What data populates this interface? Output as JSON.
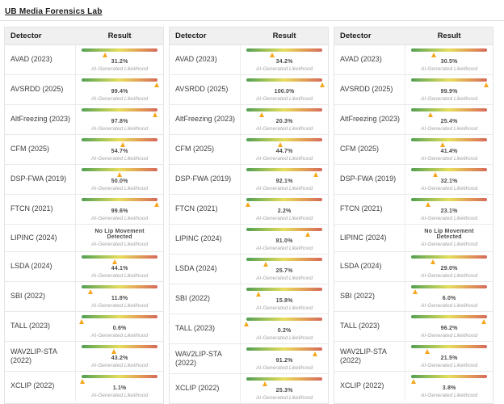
{
  "page": {
    "title": "UB Media Forensics Lab",
    "likelihood_label": "AI-Generated Likelihood",
    "colors": {
      "marker": "#f7a71e",
      "gradient": [
        "#519e52",
        "#9cc158",
        "#e7dd5e",
        "#e2a156",
        "#d5695a"
      ],
      "header_bg": "#f0f0f0",
      "border": "#e3e3e3"
    }
  },
  "table_headers": {
    "detector": "Detector",
    "result": "Result"
  },
  "tables": [
    {
      "rows": [
        {
          "detector": "AVAD (2023)",
          "result": "31.2%",
          "value": 31.2
        },
        {
          "detector": "AVSRDD (2025)",
          "result": "99.4%",
          "value": 99.4
        },
        {
          "detector": "AltFreezing (2023)",
          "result": "97.8%",
          "value": 97.8
        },
        {
          "detector": "CFM (2025)",
          "result": "54.7%",
          "value": 54.7
        },
        {
          "detector": "DSP-FWA (2019)",
          "result": "50.0%",
          "value": 50.0
        },
        {
          "detector": "FTCN (2021)",
          "result": "99.6%",
          "value": 99.6
        },
        {
          "detector": "LIPINC (2024)",
          "result": "No Lip Movement Detected",
          "value": null
        },
        {
          "detector": "LSDA (2024)",
          "result": "44.1%",
          "value": 44.1
        },
        {
          "detector": "SBI (2022)",
          "result": "11.8%",
          "value": 11.8
        },
        {
          "detector": "TALL (2023)",
          "result": "0.6%",
          "value": 0.6
        },
        {
          "detector": "WAV2LIP-STA (2022)",
          "result": "43.2%",
          "value": 43.2
        },
        {
          "detector": "XCLIP (2022)",
          "result": "1.1%",
          "value": 1.1
        }
      ]
    },
    {
      "rows": [
        {
          "detector": "AVAD (2023)",
          "result": "34.2%",
          "value": 34.2
        },
        {
          "detector": "AVSRDD (2025)",
          "result": "100.0%",
          "value": 100.0
        },
        {
          "detector": "AltFreezing (2023)",
          "result": "20.3%",
          "value": 20.3
        },
        {
          "detector": "CFM (2025)",
          "result": "44.7%",
          "value": 44.7
        },
        {
          "detector": "DSP-FWA (2019)",
          "result": "92.1%",
          "value": 92.1
        },
        {
          "detector": "FTCN (2021)",
          "result": "2.2%",
          "value": 2.2
        },
        {
          "detector": "LIPINC (2024)",
          "result": "81.0%",
          "value": 81.0
        },
        {
          "detector": "LSDA (2024)",
          "result": "25.7%",
          "value": 25.7
        },
        {
          "detector": "SBI (2022)",
          "result": "15.8%",
          "value": 15.8
        },
        {
          "detector": "TALL (2023)",
          "result": "0.2%",
          "value": 0.2
        },
        {
          "detector": "WAV2LIP-STA (2022)",
          "result": "91.2%",
          "value": 91.2
        },
        {
          "detector": "XCLIP (2022)",
          "result": "25.3%",
          "value": 25.3
        }
      ]
    },
    {
      "rows": [
        {
          "detector": "AVAD (2023)",
          "result": "30.5%",
          "value": 30.5
        },
        {
          "detector": "AVSRDD (2025)",
          "result": "99.9%",
          "value": 99.9
        },
        {
          "detector": "AltFreezing (2023)",
          "result": "25.4%",
          "value": 25.4
        },
        {
          "detector": "CFM (2025)",
          "result": "41.4%",
          "value": 41.4
        },
        {
          "detector": "DSP-FWA (2019)",
          "result": "32.1%",
          "value": 32.1
        },
        {
          "detector": "FTCN (2021)",
          "result": "23.1%",
          "value": 23.1
        },
        {
          "detector": "LIPINC (2024)",
          "result": "No Lip Movement Detected",
          "value": null
        },
        {
          "detector": "LSDA (2024)",
          "result": "29.0%",
          "value": 29.0
        },
        {
          "detector": "SBI (2022)",
          "result": "6.0%",
          "value": 6.0
        },
        {
          "detector": "TALL (2023)",
          "result": "96.2%",
          "value": 96.2
        },
        {
          "detector": "WAV2LIP-STA (2022)",
          "result": "21.5%",
          "value": 21.5
        },
        {
          "detector": "XCLIP (2022)",
          "result": "3.8%",
          "value": 3.8
        }
      ]
    }
  ]
}
